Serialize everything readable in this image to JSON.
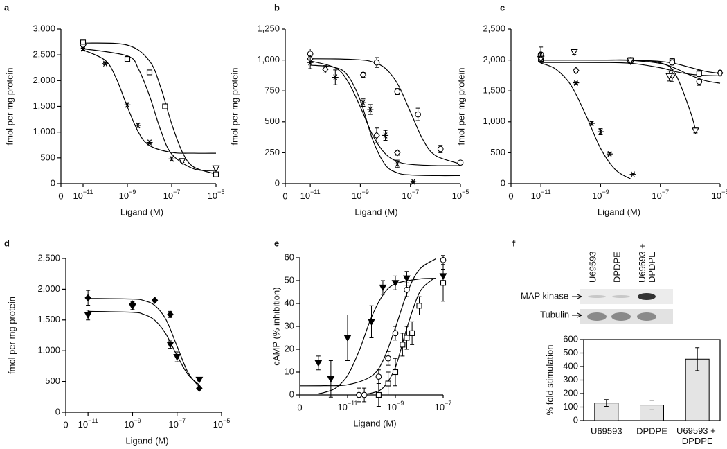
{
  "chart_data": [
    {
      "type": "scatter",
      "panel_label": "a",
      "y_label": "fmol per mg protein",
      "x_label": "Ligand (M)",
      "xscale": "log",
      "color": "#000000",
      "xlim": [
        1e-12,
        1e-05
      ],
      "xticks": [
        0,
        {
          "value": 1e-11,
          "label": "10−11"
        },
        {
          "value": 1e-09,
          "label": "10−9"
        },
        {
          "value": 1e-07,
          "label": "10−7"
        },
        {
          "value": 1e-05,
          "label": "10−5"
        }
      ],
      "ylim": [
        0,
        3000
      ],
      "yticks": [
        0,
        500,
        {
          "value": 1000,
          "label": "1,000"
        },
        {
          "value": 1500,
          "label": "1,500"
        },
        {
          "value": 2000,
          "label": "2,000"
        },
        {
          "value": 2500,
          "label": "2,500"
        },
        {
          "value": 3000,
          "label": "3,000"
        }
      ],
      "series": [
        {
          "marker": "square",
          "x": [
            1e-11,
            1e-09,
            1e-08,
            5e-08,
            1e-05
          ],
          "values": [
            2740,
            2420,
            2160,
            1500,
            180
          ],
          "errors": [
            40,
            50,
            40,
            40,
            20
          ]
        },
        {
          "marker": "triangle",
          "x": [
            1e-11,
            3e-07,
            1e-05
          ],
          "values": [
            2660,
            440,
            300
          ],
          "errors": [
            30,
            30,
            20
          ]
        },
        {
          "marker": "star",
          "x": [
            1e-11,
            1e-10,
            1e-09,
            3e-09,
            1e-08,
            1e-07
          ],
          "values": [
            2620,
            2330,
            1530,
            1130,
            800,
            480
          ],
          "errors": [
            30,
            20,
            40,
            40,
            30,
            40
          ]
        }
      ],
      "fits": [
        {
          "x": [
            1e-11,
            1e-10,
            3.16e-10,
            1e-09,
            3.16e-09,
            1e-08,
            1e-07,
            1e-06,
            1e-05
          ],
          "values": [
            2596,
            2393,
            2042,
            1489,
            998,
            739,
            606,
            591,
            590
          ]
        },
        {
          "x": [
            1e-11,
            1e-09,
            1e-08,
            3.16e-08,
            1e-07,
            3.16e-07,
            1e-06,
            1e-05
          ],
          "values": [
            2730,
            2689,
            2380,
            1875,
            1160,
            595,
            322,
            186
          ]
        },
        {
          "x": [
            1e-11,
            1e-09,
            3.16e-09,
            1e-08,
            3.16e-08,
            1e-07,
            1e-06,
            1e-05
          ],
          "values": [
            2620,
            2480,
            2226,
            1703,
            1042,
            575,
            287,
            254
          ]
        }
      ]
    },
    {
      "type": "scatter",
      "panel_label": "b",
      "y_label": "fmol per mg protein",
      "x_label": "Ligand (M)",
      "xscale": "log",
      "color": "#000000",
      "xlim": [
        1e-12,
        1e-05
      ],
      "xticks": [
        0,
        {
          "value": 1e-11,
          "label": "10−11"
        },
        {
          "value": 1e-09,
          "label": "10−9"
        },
        {
          "value": 1e-07,
          "label": "10−7"
        },
        {
          "value": 1e-05,
          "label": "10−5"
        }
      ],
      "ylim": [
        0,
        1250
      ],
      "yticks": [
        0,
        250,
        500,
        750,
        {
          "value": 1000,
          "label": "1,000"
        },
        {
          "value": 1250,
          "label": "1,250"
        }
      ],
      "series": [
        {
          "marker": "circle",
          "x": [
            1e-11,
            4.5e-09,
            3e-08,
            2e-07,
            1.6e-06,
            1e-05
          ],
          "values": [
            1050,
            980,
            745,
            560,
            280,
            170
          ],
          "errors": [
            40,
            40,
            25,
            50,
            30,
            15
          ]
        },
        {
          "marker": "diamond",
          "x": [
            1e-11,
            4e-11,
            1.3e-09,
            4.5e-09,
            3e-08
          ],
          "values": [
            1010,
            925,
            880,
            390,
            250
          ],
          "errors": [
            30,
            30,
            20,
            60,
            20
          ]
        },
        {
          "marker": "star",
          "x": [
            1e-11,
            1e-10,
            1.3e-09,
            2.5e-09,
            1e-08,
            3e-08,
            1.3e-07
          ],
          "values": [
            980,
            860,
            655,
            600,
            390,
            160,
            15
          ],
          "errors": [
            50,
            60,
            30,
            40,
            40,
            30,
            5
          ]
        }
      ],
      "fits": [
        {
          "x": [
            1e-11,
            1e-10,
            1e-09,
            3.16e-09,
            1e-08,
            3.16e-08,
            1e-07,
            3.16e-07,
            1e-06,
            1e-05
          ],
          "values": [
            1010,
            1009,
            1001,
            984,
            932,
            803,
            580,
            356,
            228,
            159
          ]
        },
        {
          "x": [
            1e-11,
            1e-10,
            3.16e-10,
            1e-09,
            3.16e-09,
            1e-08,
            3.16e-08,
            1e-07,
            1e-06,
            1e-05
          ],
          "values": [
            993,
            937,
            828,
            621,
            389,
            241,
            178,
            156,
            146,
            145
          ]
        },
        {
          "x": [
            1e-11,
            1e-10,
            3.16e-10,
            1e-09,
            3.16e-09,
            1e-08,
            3.16e-08,
            1e-07,
            1e-06,
            1e-05
          ],
          "values": [
            959,
            939,
            874,
            673,
            352,
            151,
            86,
            70,
            65,
            65
          ]
        }
      ]
    },
    {
      "type": "scatter",
      "panel_label": "c",
      "y_label": "fmol per mg protein",
      "x_label": "Ligand (M)",
      "xscale": "log",
      "color": "#000000",
      "xlim": [
        1e-12,
        1e-05
      ],
      "xticks": [
        0,
        {
          "value": 1e-11,
          "label": "10−11"
        },
        {
          "value": 1e-09,
          "label": "10−9"
        },
        {
          "value": 1e-07,
          "label": "10−7"
        },
        {
          "value": 1e-05,
          "label": "10−5"
        }
      ],
      "ylim": [
        0,
        2500
      ],
      "yticks": [
        0,
        500,
        {
          "value": 1000,
          "label": "1,000"
        },
        {
          "value": 1500,
          "label": "1,500"
        },
        {
          "value": 2000,
          "label": "2,000"
        },
        {
          "value": 2500,
          "label": "2,500"
        }
      ],
      "series": [
        {
          "marker": "square",
          "x": [
            1e-11,
            1e-08,
            2.5e-07,
            2e-06
          ],
          "values": [
            2010,
            2000,
            1980,
            1780
          ],
          "errors": [
            40,
            40,
            50,
            50
          ]
        },
        {
          "marker": "circle",
          "x": [
            1e-11,
            1e-08,
            2.5e-07,
            2e-06
          ],
          "values": [
            2090,
            2000,
            1960,
            1650
          ],
          "errors": [
            120,
            40,
            40,
            60
          ]
        },
        {
          "marker": "diamond",
          "x": [
            1e-11,
            1.5e-10,
            1e-08,
            2.5e-07,
            1e-05
          ],
          "values": [
            2000,
            1830,
            1980,
            1750,
            1790
          ],
          "errors": [
            40,
            30,
            40,
            100,
            40
          ]
        },
        {
          "marker": "triangle",
          "x": [
            1e-11,
            1.3e-10,
            1e-08,
            2e-07,
            1.5e-06
          ],
          "values": [
            2020,
            2130,
            1990,
            1740,
            860
          ],
          "errors": [
            40,
            40,
            40,
            80,
            40
          ]
        },
        {
          "marker": "star",
          "x": [
            1e-11,
            1.5e-10,
            5e-10,
            1e-09,
            2e-09,
            1.2e-08
          ],
          "values": [
            2080,
            1630,
            975,
            840,
            480,
            150
          ],
          "errors": [
            40,
            20,
            30,
            50,
            20,
            10
          ]
        }
      ],
      "fits": [
        {
          "x": [
            1e-11,
            1e-09,
            1e-08,
            1e-07,
            3.16e-07,
            1e-06,
            3.16e-06,
            1e-05
          ],
          "values": [
            2000,
            2000,
            1998,
            1978,
            1942,
            1880,
            1818,
            1782
          ]
        },
        {
          "x": [
            1e-11,
            1e-09,
            1e-08,
            1e-07,
            3.16e-07,
            1e-06,
            3.16e-06,
            1e-05
          ],
          "values": [
            2000,
            2000,
            1994,
            1945,
            1866,
            1755,
            1667,
            1624
          ]
        },
        {
          "x": [
            1e-11,
            1e-09,
            1e-08,
            1e-07,
            3.16e-07,
            1e-06,
            3.16e-06,
            1e-05
          ],
          "values": [
            1960,
            1959,
            1947,
            1875,
            1813,
            1770,
            1750,
            1744
          ]
        },
        {
          "x": [
            1e-11,
            1e-09,
            1e-08,
            1e-07,
            3.16e-07,
            1e-06,
            1.58e-06
          ],
          "values": [
            2000,
            2000,
            1999,
            1956,
            1776,
            1171,
            829
          ]
        },
        {
          "x": [
            1e-11,
            3.16e-11,
            1e-10,
            3.16e-10,
            1e-09,
            3.16e-09,
            1e-08
          ],
          "values": [
            1951,
            1853,
            1598,
            1115,
            570,
            224,
            77
          ]
        }
      ]
    },
    {
      "type": "scatter",
      "panel_label": "d",
      "y_label": "fmol per mg protein",
      "x_label": "Ligand (M)",
      "xscale": "log",
      "color": "#000000",
      "xlim": [
        1e-12,
        1e-05
      ],
      "xticks": [
        0,
        {
          "value": 1e-11,
          "label": "10−11"
        },
        {
          "value": 1e-09,
          "label": "10−9"
        },
        {
          "value": 1e-07,
          "label": "10−7"
        },
        {
          "value": 1e-05,
          "label": "10−5"
        }
      ],
      "ylim": [
        0,
        2500
      ],
      "yticks": [
        0,
        500,
        {
          "value": 1000,
          "label": "1,000"
        },
        {
          "value": 1500,
          "label": "1,500"
        },
        {
          "value": 2000,
          "label": "2,000"
        },
        {
          "value": 2500,
          "label": "2,500"
        }
      ],
      "series": [
        {
          "marker": "diamond-filled",
          "x": [
            1e-11,
            1e-09,
            1e-08,
            5e-08,
            1e-06
          ],
          "values": [
            1860,
            1760,
            1820,
            1590,
            390
          ],
          "errors": [
            120,
            40,
            20,
            50,
            20
          ]
        },
        {
          "marker": "triangle-filled",
          "x": [
            1e-11,
            1e-09,
            5e-08,
            1e-07,
            1e-06
          ],
          "values": [
            1580,
            1720,
            1100,
            900,
            530
          ],
          "errors": [
            80,
            50,
            60,
            80,
            20
          ]
        }
      ],
      "fits": [
        {
          "x": [
            1e-11,
            1e-09,
            3.16e-09,
            1e-08,
            3.16e-08,
            1e-07,
            3.16e-07,
            1e-06
          ],
          "values": [
            1850,
            1840,
            1816,
            1736,
            1509,
            1075,
            641,
            414
          ]
        },
        {
          "x": [
            1e-11,
            1e-09,
            3.16e-09,
            1e-08,
            3.16e-08,
            1e-07,
            3.16e-07,
            1e-06
          ],
          "values": [
            1640,
            1624,
            1591,
            1496,
            1272,
            921,
            609,
            445
          ]
        }
      ]
    },
    {
      "type": "scatter",
      "panel_label": "e",
      "y_label": "cAMP (% inhibition)",
      "x_label": "Ligand (M)",
      "xscale": "log",
      "color": "#000000",
      "xlim": [
        1e-13,
        1e-07
      ],
      "xticks": [
        0,
        {
          "value": 1e-11,
          "label": "10−11"
        },
        {
          "value": 1e-09,
          "label": "10−9"
        },
        {
          "value": 1e-07,
          "label": "10−7"
        }
      ],
      "ylim": [
        0,
        60
      ],
      "yticks": [
        0,
        10,
        20,
        30,
        40,
        50,
        60
      ],
      "series": [
        {
          "marker": "triangle-filled",
          "x": [
            6e-13,
            2e-12,
            1e-11,
            1e-10,
            3e-10,
            1e-09,
            3e-09,
            1e-07
          ],
          "values": [
            14,
            7,
            25,
            32,
            47,
            49,
            51,
            52
          ],
          "errors": [
            3,
            8,
            10,
            7,
            3,
            3,
            3,
            3
          ]
        },
        {
          "marker": "circle",
          "x": [
            3e-11,
            5e-11,
            2e-10,
            5e-10,
            1e-09,
            3e-09,
            1e-07
          ],
          "values": [
            0,
            0,
            8,
            16,
            27,
            46,
            59
          ],
          "errors": [
            3,
            3,
            3,
            3,
            3,
            3,
            2
          ]
        },
        {
          "marker": "square",
          "x": [
            2e-10,
            5e-10,
            1e-09,
            2e-09,
            3e-09,
            5e-09,
            1e-08,
            1e-07
          ],
          "values": [
            0,
            5,
            10,
            22,
            25,
            27,
            39,
            49
          ],
          "errors": [
            5,
            5,
            6,
            5,
            5,
            5,
            4,
            8
          ]
        }
      ],
      "fits": [
        {
          "x": [
            6.3e-13,
            1e-12,
            3.16e-12,
            1e-11,
            3.16e-11,
            1e-10,
            3.16e-10,
            1e-09,
            1e-08,
            5e-08
          ],
          "values": [
            0.6,
            1.0,
            3.0,
            8.5,
            19.7,
            34,
            44,
            48.6,
            50.7,
            51
          ]
        },
        {
          "x": [
            1e-13,
            1e-12,
            1e-11,
            1e-10,
            3.16e-10,
            1e-09,
            3.16e-09,
            1e-08,
            5e-08
          ],
          "values": [
            4,
            4.05,
            4.45,
            8.2,
            15.4,
            29.4,
            44.8,
            54.8,
            59.6
          ]
        },
        {
          "x": [
            3.16e-11,
            1e-10,
            3.16e-10,
            1e-09,
            3.16e-09,
            1e-08,
            3.16e-08,
            5e-08
          ],
          "values": [
            0.2,
            0.8,
            3.3,
            12.1,
            29.9,
            44.6,
            50.1,
            51
          ]
        }
      ]
    },
    {
      "type": "bar",
      "panel_label": "f",
      "y_label": "% fold stimulation",
      "color": "#e4e4e4",
      "categories": [
        "U69593",
        "DPDPE",
        "U69593 + DPDPE"
      ],
      "values": [
        130,
        115,
        455
      ],
      "errors": [
        25,
        35,
        85
      ],
      "ylim": [
        0,
        600
      ],
      "yticks": [
        0,
        100,
        200,
        300,
        400,
        500,
        600
      ],
      "blot": {
        "lanes": [
          "U69593",
          "DPDPE",
          "U69593 + DPDPE"
        ],
        "rows": [
          "MAP kinase",
          "Tubulin"
        ]
      }
    }
  ]
}
